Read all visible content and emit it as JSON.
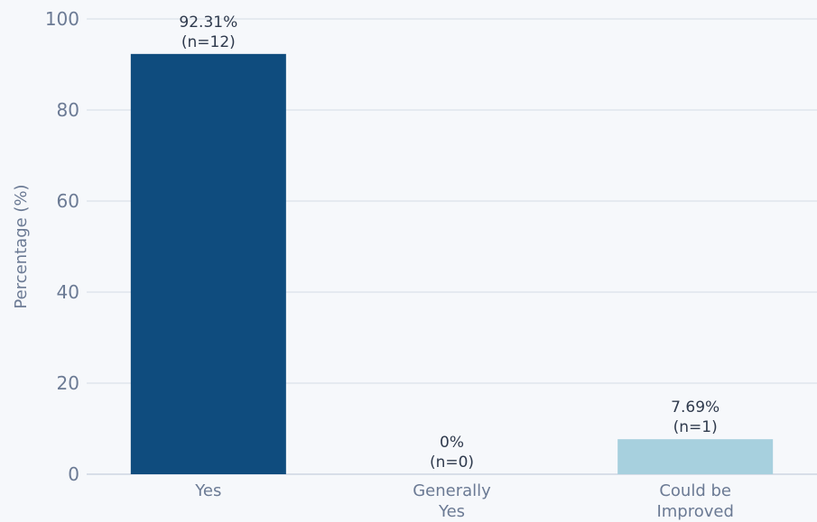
{
  "chart_data": {
    "type": "bar",
    "ylabel": "Percentage (%)",
    "xlabel": "",
    "ylim": [
      0,
      100
    ],
    "yticks": [
      0,
      20,
      40,
      60,
      80,
      100
    ],
    "grid": true,
    "categories": [
      [
        "Yes"
      ],
      [
        "Generally",
        "Yes"
      ],
      [
        "Could be",
        "Improved"
      ]
    ],
    "values": [
      92.31,
      0,
      7.69
    ],
    "data_labels": [
      [
        "92.31%",
        "(n=12)"
      ],
      [
        "0%",
        "(n=0)"
      ],
      [
        "7.69%",
        "(n=1)"
      ]
    ],
    "colors": [
      "#0f4c7e",
      "#1f6aa5",
      "#a7d0de"
    ]
  }
}
